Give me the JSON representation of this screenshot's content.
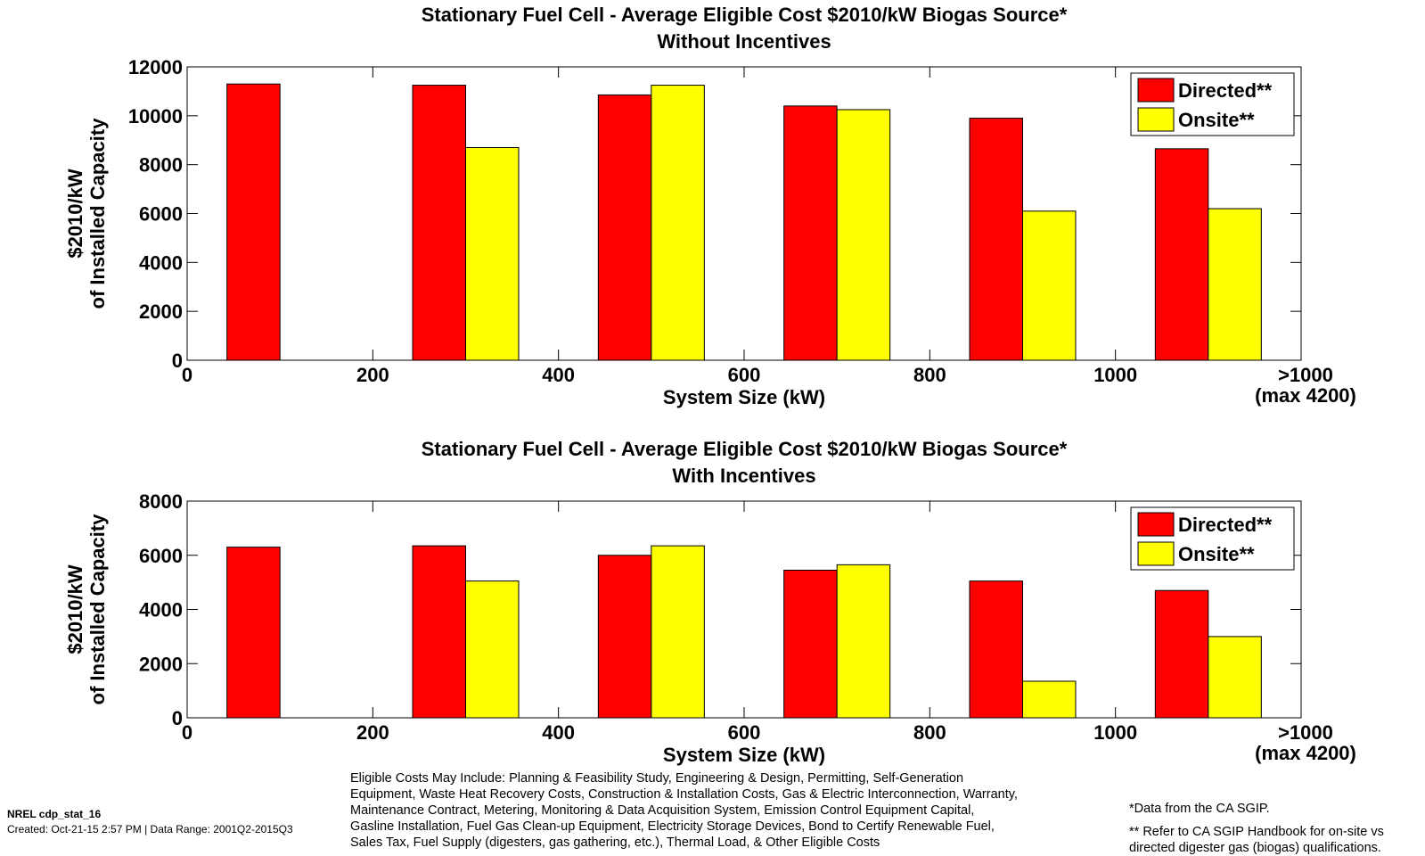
{
  "chart_data": [
    {
      "type": "bar",
      "title": "Stationary Fuel Cell - Average Eligible Cost $2010/kW Biogas Source*",
      "subtitle": "Without Incentives",
      "xlabel": "System Size (kW)",
      "ylabel_lines": [
        "$2010/kW",
        "of Installed Capacity"
      ],
      "ylim": [
        0,
        12000
      ],
      "yticks": [
        0,
        2000,
        4000,
        6000,
        8000,
        10000,
        12000
      ],
      "xlim": [
        0,
        1200
      ],
      "xticks": [
        {
          "value": 0,
          "label": "0"
        },
        {
          "value": 200,
          "label": "200"
        },
        {
          "value": 400,
          "label": "400"
        },
        {
          "value": 600,
          "label": "600"
        },
        {
          "value": 800,
          "label": "800"
        },
        {
          "value": 1000,
          "label": "1000"
        }
      ],
      "extra_xtick": {
        "value": 1200,
        "label_lines": [
          ">1000",
          "(max 4200)"
        ]
      },
      "categories": [
        100,
        300,
        500,
        700,
        900,
        1100
      ],
      "series": [
        {
          "name": "Directed**",
          "color": "#ff0000",
          "values": [
            11300,
            11250,
            10850,
            10400,
            9900,
            8650
          ]
        },
        {
          "name": "Onsite**",
          "color": "#ffff00",
          "values": [
            null,
            8700,
            11250,
            10250,
            6100,
            6200
          ]
        }
      ],
      "legend": "top-right"
    },
    {
      "type": "bar",
      "title": "Stationary Fuel Cell - Average Eligible Cost $2010/kW Biogas Source*",
      "subtitle": "With Incentives",
      "xlabel": "System Size (kW)",
      "ylabel_lines": [
        "$2010/kW",
        "of Installed Capacity"
      ],
      "ylim": [
        0,
        8000
      ],
      "yticks": [
        0,
        2000,
        4000,
        6000,
        8000
      ],
      "xlim": [
        0,
        1200
      ],
      "xticks": [
        {
          "value": 0,
          "label": "0"
        },
        {
          "value": 200,
          "label": "200"
        },
        {
          "value": 400,
          "label": "400"
        },
        {
          "value": 600,
          "label": "600"
        },
        {
          "value": 800,
          "label": "800"
        },
        {
          "value": 1000,
          "label": "1000"
        }
      ],
      "extra_xtick": {
        "value": 1200,
        "label_lines": [
          ">1000",
          "(max 4200)"
        ]
      },
      "categories": [
        100,
        300,
        500,
        700,
        900,
        1100
      ],
      "series": [
        {
          "name": "Directed**",
          "color": "#ff0000",
          "values": [
            6300,
            6350,
            6000,
            5450,
            5050,
            4700
          ]
        },
        {
          "name": "Onsite**",
          "color": "#ffff00",
          "values": [
            null,
            5050,
            6350,
            5650,
            1350,
            3000
          ]
        }
      ],
      "legend": "top-right"
    }
  ],
  "footer": {
    "id": "NREL cdp_stat_16",
    "created": "Created: Oct-21-15  2:57 PM | Data Range: 2001Q2-2015Q3",
    "eligible_costs": [
      "Eligible Costs May Include: Planning & Feasibility Study, Engineering & Design, Permitting, Self-Generation",
      "Equipment, Waste Heat Recovery Costs, Construction & Installation Costs, Gas & Electric Interconnection, Warranty,",
      "Maintenance Contract, Metering, Monitoring & Data Acquisition System, Emission Control Equipment Capital,",
      "Gasline Installation, Fuel Gas Clean-up Equipment, Electricity Storage Devices, Bond to Certify Renewable Fuel,",
      "Sales Tax, Fuel Supply (digesters, gas gathering, etc.), Thermal Load, & Other Eligible Costs"
    ],
    "data_note": "*Data from the CA SGIP.",
    "handbook_note": [
      "** Refer to CA SGIP Handbook for on-site vs",
      "directed digester gas (biogas) qualifications."
    ]
  }
}
